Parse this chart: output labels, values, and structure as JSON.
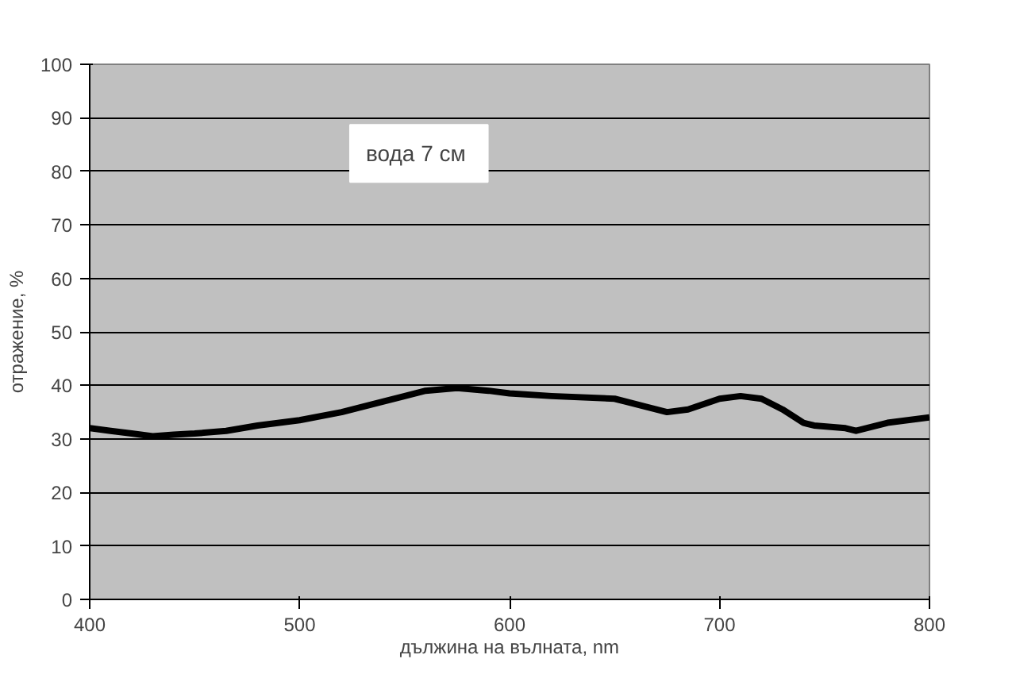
{
  "chart_data": {
    "type": "line",
    "xlabel": "дължина на вълната, nm",
    "ylabel": "отражение, %",
    "annotations": [
      "вода  7 см"
    ],
    "x": [
      400,
      410,
      420,
      430,
      440,
      450,
      465,
      480,
      500,
      520,
      540,
      560,
      575,
      590,
      600,
      620,
      650,
      665,
      675,
      685,
      700,
      710,
      720,
      730,
      740,
      745,
      760,
      765,
      780,
      800
    ],
    "series": [
      {
        "color": "#000000",
        "values": [
          32,
          31.5,
          31,
          30.5,
          30.8,
          31,
          31.5,
          32.5,
          33.5,
          35,
          37,
          39,
          39.5,
          39,
          38.5,
          38,
          37.5,
          36,
          35,
          35.5,
          37.5,
          38,
          37.5,
          35.5,
          33,
          32.5,
          32,
          31.5,
          33,
          34
        ]
      }
    ],
    "xlim": [
      400,
      800
    ],
    "ylim": [
      0,
      100
    ],
    "xticks": [
      400,
      500,
      600,
      700,
      800
    ],
    "yticks": [
      0,
      10,
      20,
      30,
      40,
      50,
      60,
      70,
      80,
      90,
      100
    ],
    "grid": "y",
    "marker": "none",
    "line_style": "solid"
  }
}
